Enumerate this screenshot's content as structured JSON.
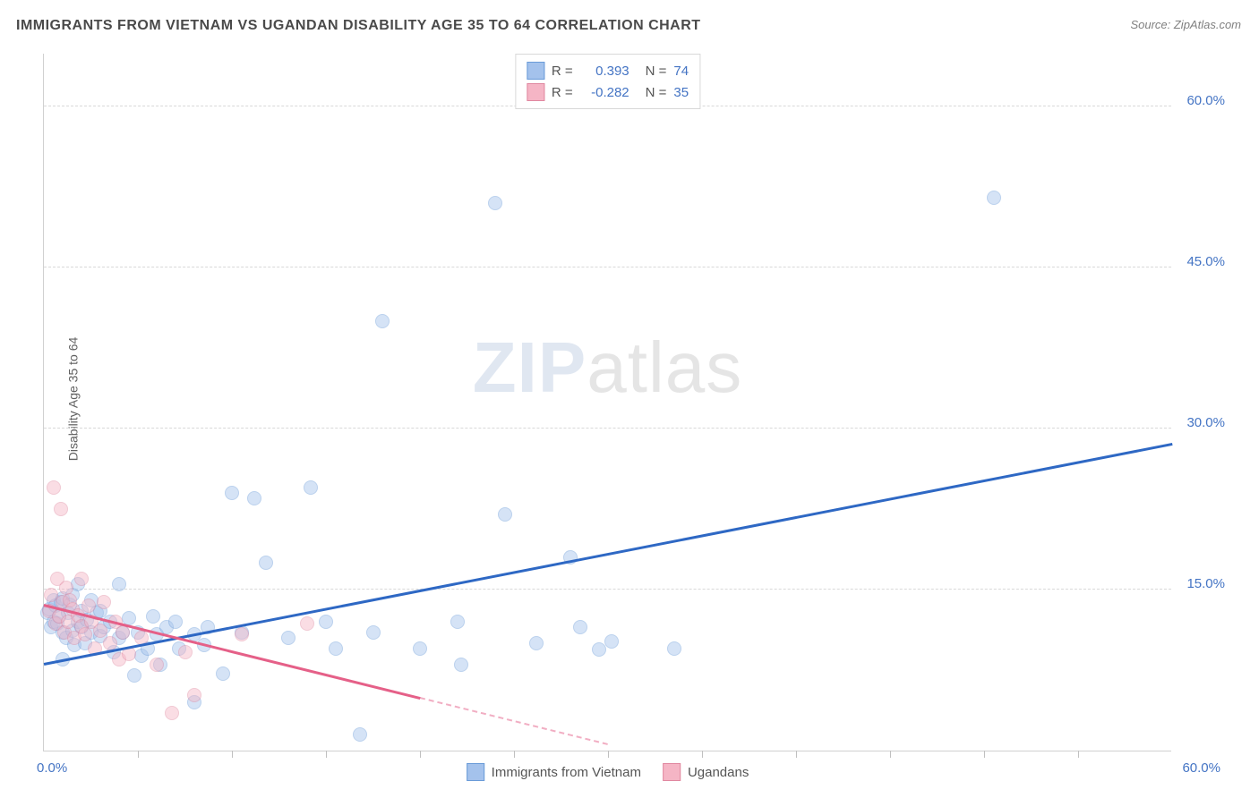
{
  "title": "IMMIGRANTS FROM VIETNAM VS UGANDAN DISABILITY AGE 35 TO 64 CORRELATION CHART",
  "source": "Source: ZipAtlas.com",
  "ylabel": "Disability Age 35 to 64",
  "watermark": {
    "part1": "ZIP",
    "part2": "atlas"
  },
  "chart": {
    "type": "scatter",
    "background_color": "#ffffff",
    "grid_color": "#d8d8d8",
    "axis_color": "#d0d0d0",
    "xlim": [
      0,
      60
    ],
    "ylim": [
      0,
      65
    ],
    "y_ticks": [
      15,
      30,
      45,
      60
    ],
    "y_tick_labels": [
      "15.0%",
      "30.0%",
      "45.0%",
      "60.0%"
    ],
    "y_tick_color": "#4474c4",
    "x_origin_label": "0.0%",
    "x_max_label": "60.0%",
    "x_label_color": "#4474c4",
    "x_tick_marks": [
      5,
      10,
      15,
      20,
      25,
      30,
      35,
      40,
      45,
      50,
      55
    ],
    "marker_radius": 8,
    "marker_opacity": 0.45,
    "series": [
      {
        "name": "Immigrants from Vietnam",
        "color_fill": "#a4c2ec",
        "color_stroke": "#6a9bd8",
        "R": "0.393",
        "N": "74",
        "points": [
          [
            0.2,
            12.8
          ],
          [
            0.3,
            13.2
          ],
          [
            0.4,
            11.5
          ],
          [
            0.5,
            12.0
          ],
          [
            0.5,
            14.0
          ],
          [
            0.6,
            13.5
          ],
          [
            0.7,
            11.8
          ],
          [
            0.8,
            12.5
          ],
          [
            0.9,
            13.8
          ],
          [
            1.0,
            8.5
          ],
          [
            1.0,
            11.0
          ],
          [
            1.0,
            14.2
          ],
          [
            1.2,
            10.5
          ],
          [
            1.3,
            12.8
          ],
          [
            1.4,
            13.6
          ],
          [
            1.5,
            11.2
          ],
          [
            1.5,
            14.5
          ],
          [
            1.6,
            9.8
          ],
          [
            1.8,
            12.0
          ],
          [
            1.8,
            15.5
          ],
          [
            2.0,
            11.5
          ],
          [
            2.0,
            13.0
          ],
          [
            2.2,
            10.0
          ],
          [
            2.3,
            12.2
          ],
          [
            2.5,
            11.0
          ],
          [
            2.5,
            14.0
          ],
          [
            2.8,
            12.8
          ],
          [
            3.0,
            10.7
          ],
          [
            3.0,
            13.0
          ],
          [
            3.2,
            11.5
          ],
          [
            3.5,
            12.0
          ],
          [
            3.7,
            9.2
          ],
          [
            4.0,
            10.5
          ],
          [
            4.0,
            15.5
          ],
          [
            4.2,
            11.0
          ],
          [
            4.5,
            12.3
          ],
          [
            4.8,
            7.0
          ],
          [
            5.0,
            11.0
          ],
          [
            5.2,
            8.8
          ],
          [
            5.5,
            9.5
          ],
          [
            5.8,
            12.5
          ],
          [
            6.0,
            10.8
          ],
          [
            6.2,
            8.0
          ],
          [
            6.5,
            11.5
          ],
          [
            7.0,
            12.0
          ],
          [
            7.2,
            9.5
          ],
          [
            8.0,
            10.8
          ],
          [
            8.0,
            4.5
          ],
          [
            8.5,
            9.8
          ],
          [
            8.7,
            11.5
          ],
          [
            9.5,
            7.2
          ],
          [
            10.0,
            24.0
          ],
          [
            10.5,
            11.0
          ],
          [
            11.2,
            23.5
          ],
          [
            11.8,
            17.5
          ],
          [
            13.0,
            10.5
          ],
          [
            14.2,
            24.5
          ],
          [
            15.0,
            12.0
          ],
          [
            15.5,
            9.5
          ],
          [
            16.8,
            1.5
          ],
          [
            17.5,
            11.0
          ],
          [
            18.0,
            40.0
          ],
          [
            20.0,
            9.5
          ],
          [
            22.0,
            12.0
          ],
          [
            22.2,
            8.0
          ],
          [
            24.0,
            51.0
          ],
          [
            24.5,
            22.0
          ],
          [
            26.2,
            10.0
          ],
          [
            28.0,
            18.0
          ],
          [
            28.5,
            11.5
          ],
          [
            29.5,
            9.4
          ],
          [
            30.2,
            10.2
          ],
          [
            33.5,
            9.5
          ],
          [
            50.5,
            51.5
          ]
        ],
        "trend": {
          "x1": 0,
          "y1": 8.0,
          "x2": 60,
          "y2": 28.5,
          "color": "#2e68c4",
          "width": 2.5
        }
      },
      {
        "name": "Ugandans",
        "color_fill": "#f5b5c5",
        "color_stroke": "#e088a0",
        "R": "-0.282",
        "N": "35",
        "points": [
          [
            0.3,
            13.0
          ],
          [
            0.4,
            14.5
          ],
          [
            0.5,
            24.5
          ],
          [
            0.6,
            11.8
          ],
          [
            0.7,
            16.0
          ],
          [
            0.8,
            12.5
          ],
          [
            0.9,
            22.5
          ],
          [
            1.0,
            13.8
          ],
          [
            1.1,
            11.0
          ],
          [
            1.2,
            15.2
          ],
          [
            1.3,
            12.0
          ],
          [
            1.4,
            14.0
          ],
          [
            1.5,
            13.2
          ],
          [
            1.6,
            10.5
          ],
          [
            1.8,
            12.6
          ],
          [
            2.0,
            11.6
          ],
          [
            2.0,
            16.0
          ],
          [
            2.2,
            10.8
          ],
          [
            2.4,
            13.5
          ],
          [
            2.5,
            12.0
          ],
          [
            2.7,
            9.5
          ],
          [
            3.0,
            11.2
          ],
          [
            3.2,
            13.8
          ],
          [
            3.5,
            10.0
          ],
          [
            3.8,
            12.0
          ],
          [
            4.0,
            8.5
          ],
          [
            4.2,
            11.0
          ],
          [
            4.5,
            9.0
          ],
          [
            5.2,
            10.5
          ],
          [
            6.0,
            8.0
          ],
          [
            6.8,
            3.5
          ],
          [
            7.5,
            9.2
          ],
          [
            8.0,
            5.2
          ],
          [
            10.5,
            10.8
          ],
          [
            14.0,
            11.8
          ]
        ],
        "trend": {
          "x1": 0,
          "y1": 13.5,
          "x2": 30,
          "y2": 0.5,
          "color": "#e56088",
          "width": 2.5,
          "dash_from_x": 20
        }
      }
    ],
    "legend_top": {
      "stat_label_R": "R =",
      "stat_label_N": "N =",
      "stat_value_color": "#4474c4",
      "font_size": 15
    },
    "legend_bottom": {
      "font_size": 15,
      "text_color": "#555555"
    }
  }
}
